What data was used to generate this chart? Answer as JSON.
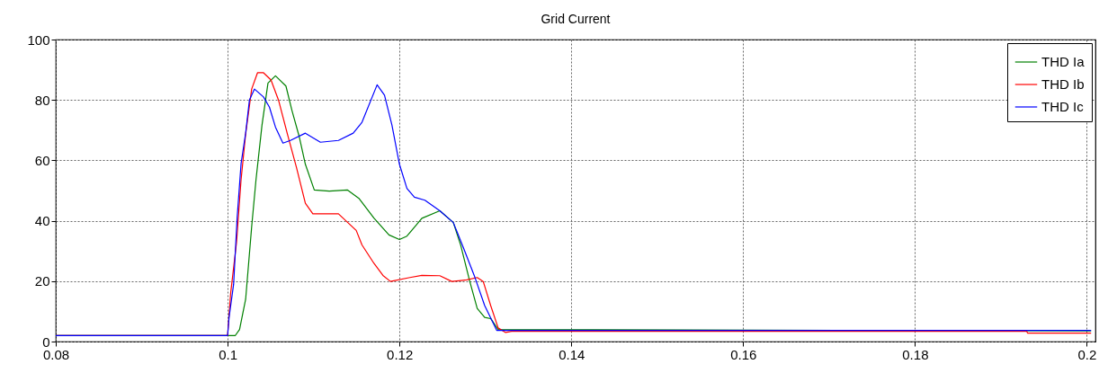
{
  "chart_data": {
    "type": "line",
    "title": "Grid Current",
    "xlim": [
      0.08,
      0.201
    ],
    "xticks": [
      0.08,
      0.1,
      0.12,
      0.14,
      0.16,
      0.18,
      0.2
    ],
    "ylim": [
      0,
      100
    ],
    "yticks": [
      0,
      20,
      40,
      60,
      80,
      100
    ],
    "grid": true,
    "legend": "top right",
    "marker": "none",
    "line_style": "solid",
    "series": [
      {
        "name": "THD Ia",
        "color": "#008000",
        "x": [
          0.08,
          0.1,
          0.1009,
          0.10139,
          0.1021,
          0.1028,
          0.10331,
          0.104,
          0.1047,
          0.10557,
          0.10679,
          0.10748,
          0.10835,
          0.10905,
          0.11009,
          0.11183,
          0.11393,
          0.11532,
          0.11703,
          0.11878,
          0.12,
          0.12087,
          0.12261,
          0.1247,
          0.12627,
          0.12713,
          0.12818,
          0.12905,
          0.12992,
          0.13062,
          0.13149,
          0.2005
        ],
        "values": [
          2,
          2,
          2,
          4,
          14,
          38,
          53.7,
          71.6,
          85.6,
          88,
          84.6,
          76.6,
          67.7,
          58.7,
          50.2,
          49.8,
          50.2,
          47.3,
          40.9,
          35.3,
          33.8,
          34.9,
          40.8,
          43.3,
          39.4,
          31.9,
          20,
          11,
          8,
          7.6,
          4,
          3.5
        ]
      },
      {
        "name": "THD Ib",
        "color": "#ff0000",
        "x": [
          0.08,
          0.1,
          0.10035,
          0.10104,
          0.10157,
          0.1021,
          0.1028,
          0.10348,
          0.10418,
          0.10505,
          0.10592,
          0.10696,
          0.10801,
          0.10905,
          0.10992,
          0.1129,
          0.11497,
          0.11564,
          0.11703,
          0.11808,
          0.11895,
          0.12122,
          0.12261,
          0.1247,
          0.12609,
          0.12783,
          0.12905,
          0.12975,
          0.13062,
          0.13149,
          0.13236,
          0.13306,
          0.193,
          0.1931,
          0.2005
        ],
        "values": [
          2,
          2,
          15.9,
          32.8,
          53.7,
          68.7,
          83.6,
          89,
          89,
          86.6,
          80,
          68.7,
          57.7,
          45.8,
          42.3,
          42.3,
          36.8,
          32,
          25.9,
          21.9,
          19.9,
          21.2,
          21.9,
          21.8,
          19.9,
          20.4,
          21.2,
          19.9,
          11.9,
          4.5,
          3,
          3.4,
          3.4,
          2.8,
          2.8
        ]
      },
      {
        "name": "THD Ic",
        "color": "#0000ff",
        "x": [
          0.08,
          0.1,
          0.10017,
          0.1007,
          0.10111,
          0.10157,
          0.1021,
          0.10254,
          0.10313,
          0.10418,
          0.10487,
          0.10557,
          0.10644,
          0.10731,
          0.10905,
          0.1108,
          0.1129,
          0.11462,
          0.11564,
          0.1174,
          0.11826,
          0.11913,
          0.12,
          0.12087,
          0.12174,
          0.12296,
          0.1247,
          0.12627,
          0.12748,
          0.1287,
          0.12992,
          0.13132,
          0.2005
        ],
        "values": [
          2,
          2,
          8,
          19,
          41,
          59,
          69,
          80,
          83.6,
          81,
          77.6,
          71,
          65.7,
          66.6,
          69,
          66,
          66.6,
          69,
          72.6,
          85,
          81.6,
          71.6,
          58.7,
          50.7,
          47.8,
          46.8,
          43.3,
          39.4,
          30.8,
          21.9,
          11.9,
          3.7,
          3.7
        ]
      }
    ]
  }
}
